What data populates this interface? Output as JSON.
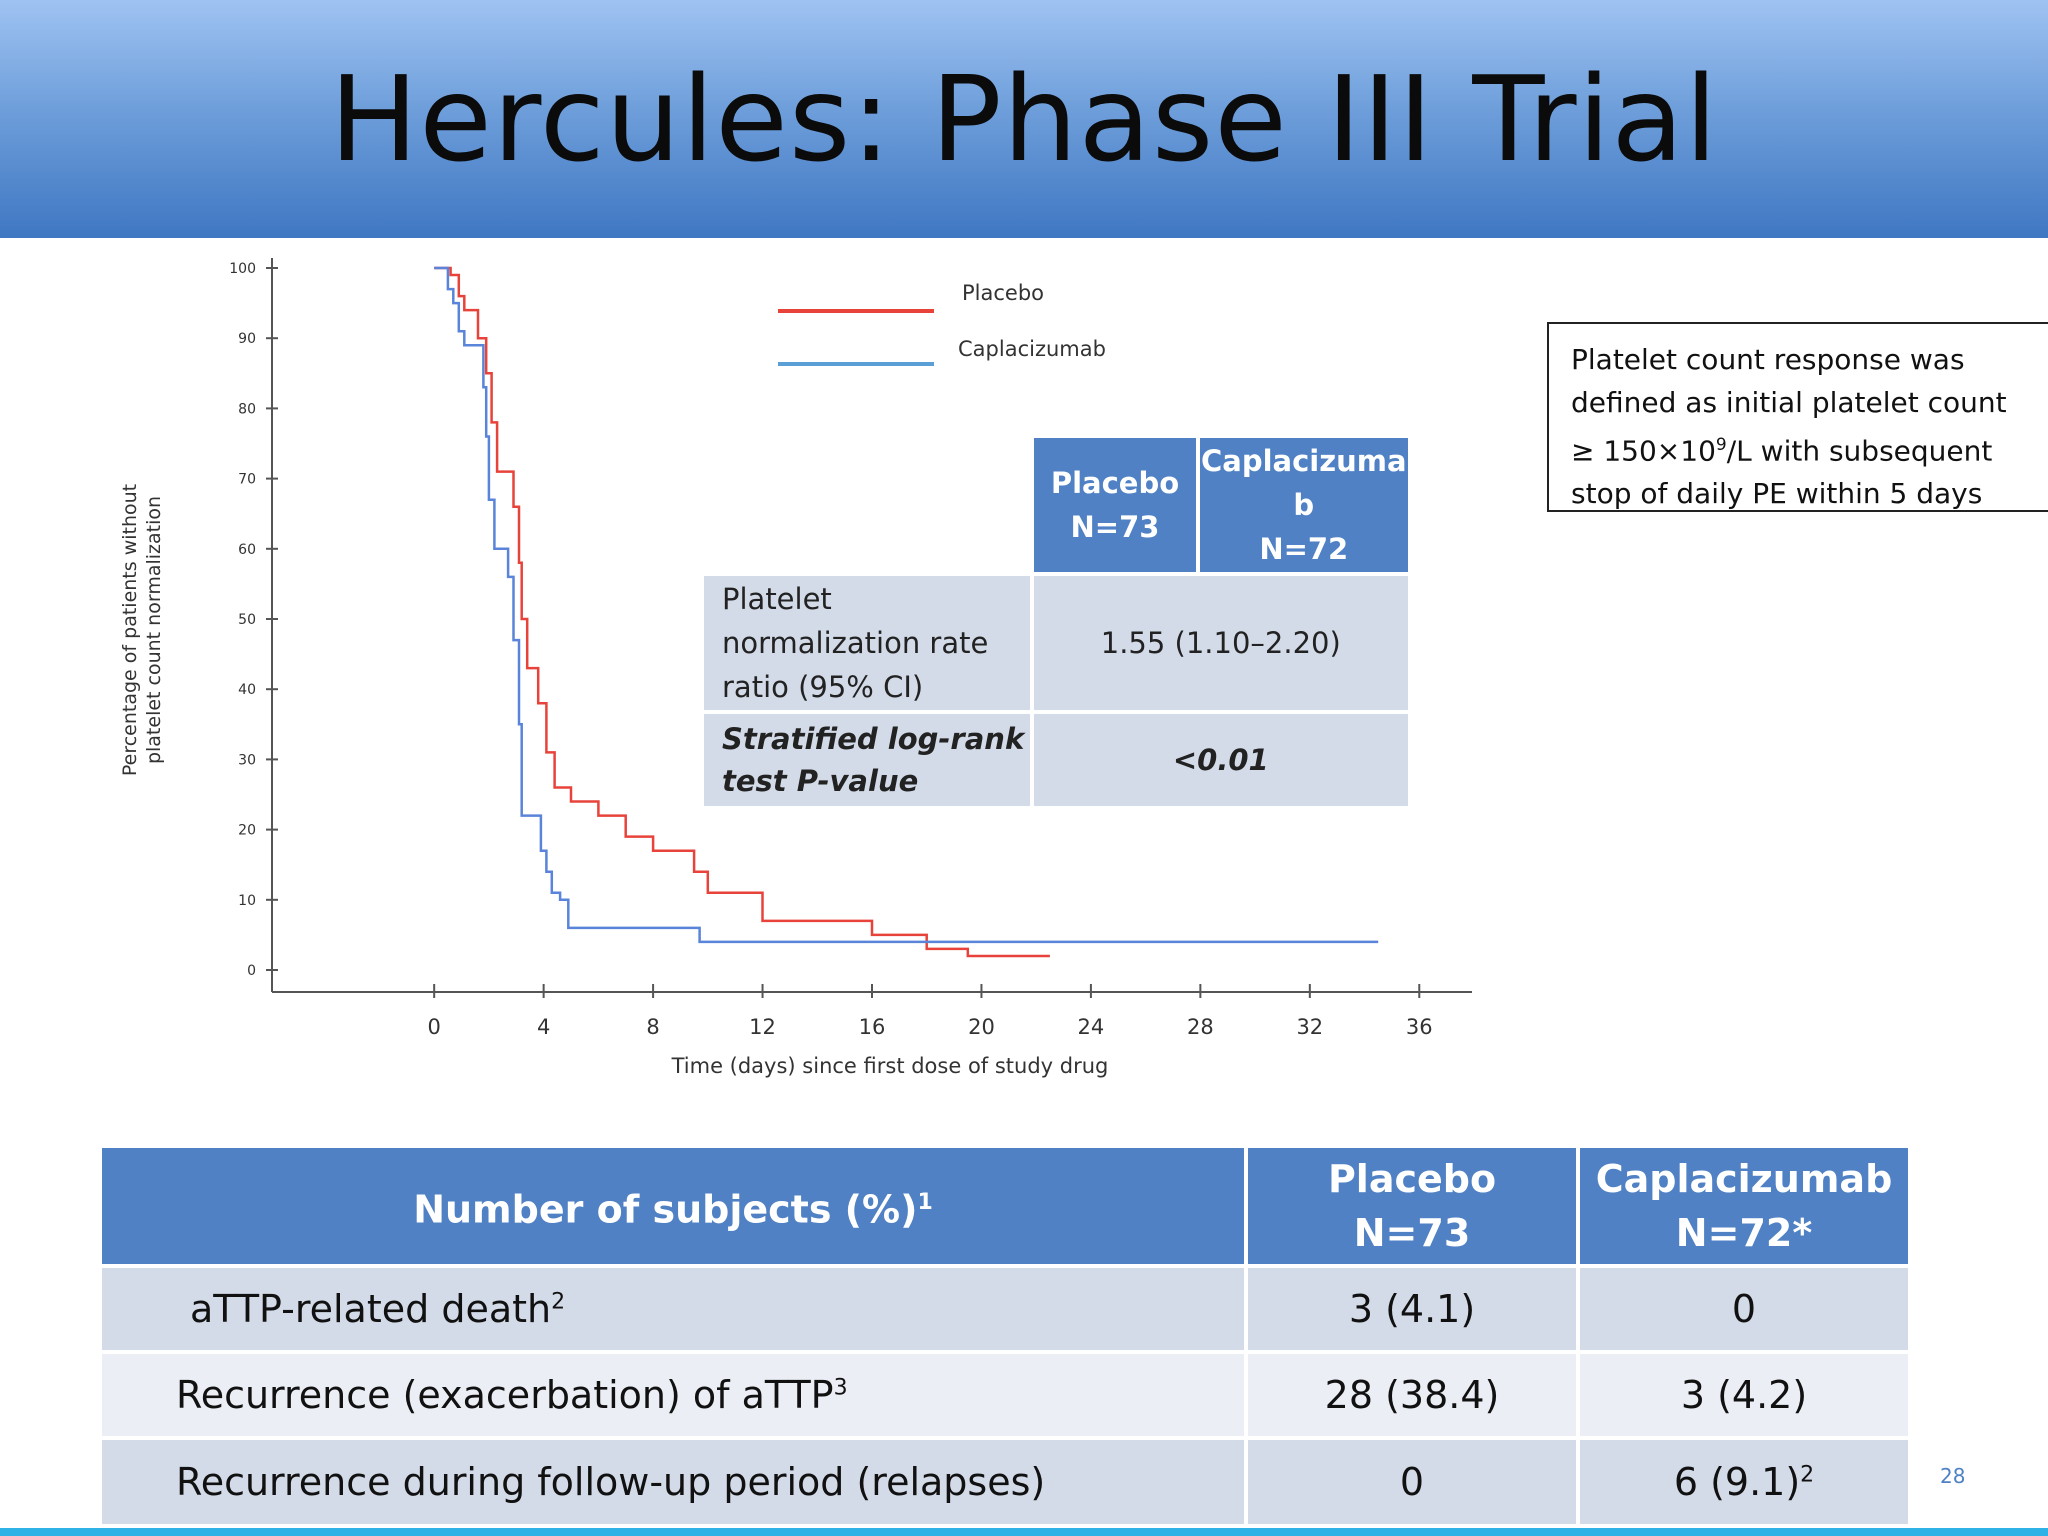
{
  "slide": {
    "title": "Hercules: Phase III Trial",
    "slide_number": "28"
  },
  "chart_data": {
    "type": "line",
    "title": "",
    "xlabel": "Time (days) since first dose of study drug",
    "ylabel_line1": "Percentage of patients without",
    "ylabel_line2": "platelet count normalization",
    "xlim": [
      -6,
      38
    ],
    "ylim": [
      0,
      100
    ],
    "x_ticks": [
      0,
      4,
      8,
      12,
      16,
      20,
      24,
      28,
      32,
      36
    ],
    "y_ticks": [
      0,
      10,
      20,
      30,
      40,
      50,
      60,
      70,
      80,
      90,
      100
    ],
    "grid": false,
    "legend": {
      "placement": "top-center"
    },
    "series": [
      {
        "name": "Placebo",
        "color": "#e8433b",
        "points": [
          [
            0,
            100
          ],
          [
            0.6,
            100
          ],
          [
            0.6,
            99
          ],
          [
            0.9,
            99
          ],
          [
            0.9,
            96
          ],
          [
            1.1,
            96
          ],
          [
            1.1,
            94
          ],
          [
            1.6,
            94
          ],
          [
            1.6,
            90
          ],
          [
            1.9,
            90
          ],
          [
            1.9,
            85
          ],
          [
            2.1,
            85
          ],
          [
            2.1,
            78
          ],
          [
            2.3,
            78
          ],
          [
            2.3,
            71
          ],
          [
            2.9,
            71
          ],
          [
            2.9,
            66
          ],
          [
            3.1,
            66
          ],
          [
            3.1,
            58
          ],
          [
            3.2,
            58
          ],
          [
            3.2,
            50
          ],
          [
            3.4,
            50
          ],
          [
            3.4,
            43
          ],
          [
            3.8,
            43
          ],
          [
            3.8,
            38
          ],
          [
            4.1,
            38
          ],
          [
            4.1,
            31
          ],
          [
            4.4,
            31
          ],
          [
            4.4,
            26
          ],
          [
            5,
            26
          ],
          [
            5,
            24
          ],
          [
            6,
            24
          ],
          [
            6,
            22
          ],
          [
            7,
            22
          ],
          [
            7,
            19
          ],
          [
            8,
            19
          ],
          [
            8,
            17
          ],
          [
            9.5,
            17
          ],
          [
            9.5,
            14
          ],
          [
            10,
            14
          ],
          [
            10,
            11
          ],
          [
            12,
            11
          ],
          [
            12,
            7
          ],
          [
            16,
            7
          ],
          [
            16,
            5
          ],
          [
            18,
            5
          ],
          [
            18,
            3
          ],
          [
            19.5,
            3
          ],
          [
            19.5,
            2
          ],
          [
            22.5,
            2
          ]
        ]
      },
      {
        "name": "Caplacizumab",
        "color": "#5a84d9",
        "points": [
          [
            0,
            100
          ],
          [
            0.5,
            100
          ],
          [
            0.5,
            97
          ],
          [
            0.7,
            97
          ],
          [
            0.7,
            95
          ],
          [
            0.9,
            95
          ],
          [
            0.9,
            91
          ],
          [
            1.1,
            91
          ],
          [
            1.1,
            89
          ],
          [
            1.8,
            89
          ],
          [
            1.8,
            83
          ],
          [
            1.9,
            83
          ],
          [
            1.9,
            76
          ],
          [
            2,
            76
          ],
          [
            2,
            67
          ],
          [
            2.2,
            67
          ],
          [
            2.2,
            60
          ],
          [
            2.7,
            60
          ],
          [
            2.7,
            56
          ],
          [
            2.9,
            56
          ],
          [
            2.9,
            47
          ],
          [
            3.1,
            47
          ],
          [
            3.1,
            35
          ],
          [
            3.2,
            35
          ],
          [
            3.2,
            22
          ],
          [
            3.9,
            22
          ],
          [
            3.9,
            17
          ],
          [
            4.1,
            17
          ],
          [
            4.1,
            14
          ],
          [
            4.3,
            14
          ],
          [
            4.3,
            11
          ],
          [
            4.6,
            11
          ],
          [
            4.6,
            10
          ],
          [
            4.9,
            10
          ],
          [
            4.9,
            6
          ],
          [
            9.7,
            6
          ],
          [
            9.7,
            4
          ],
          [
            34.5,
            4
          ]
        ]
      }
    ]
  },
  "stats_table": {
    "col1_line1": "Placebo",
    "col1_line2": "N=73",
    "col2_line1": "Caplacizuma",
    "col2_line2": "b",
    "col2_line3": "N=72",
    "row1_label_line1": "Platelet",
    "row1_label_line2": "normalization rate",
    "row1_label_line3": "ratio (95% CI)",
    "row1_value": "1.55 (1.10–2.20)",
    "row2_label_line1": "Stratified log-rank",
    "row2_label_line2": "test   P-value",
    "row2_value": "<0.01"
  },
  "note": {
    "line1": "Platelet count response was",
    "line2": "defined as initial platelet count",
    "line3_pre": "≥ 150×10",
    "line3_sup": "9",
    "line3_post": "/L with subsequent",
    "line4": "stop of daily PE within 5 days"
  },
  "outcomes_table": {
    "header_label": "Number of subjects (%)",
    "header_sup": "1",
    "col1_line1": "Placebo",
    "col1_line2": "N=73",
    "col2_line1": "Caplacizumab",
    "col2_line2": "N=72*",
    "rows": [
      {
        "label": "aTTP-related death",
        "sup": "2",
        "placebo": "3 (4.1)",
        "capla": "0",
        "capla_sup": ""
      },
      {
        "label": "Recurrence (exacerbation) of aTTP",
        "sup": "3",
        "placebo": "28 (38.4)",
        "capla": "3 (4.2)",
        "capla_sup": ""
      },
      {
        "label": "Recurrence during follow-up period (relapses)",
        "sup": "",
        "placebo": "0",
        "capla": "6 (9.1)",
        "capla_sup": "2"
      }
    ]
  }
}
